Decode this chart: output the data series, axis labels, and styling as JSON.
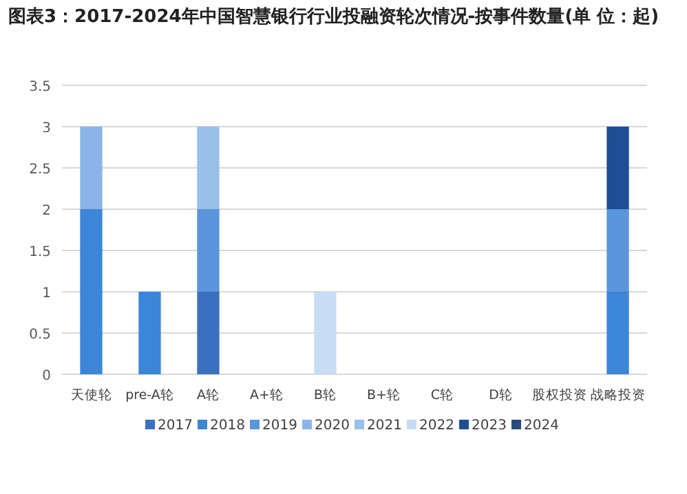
{
  "chart_data": {
    "type": "bar",
    "stacked": true,
    "title": "图表3：2017-2024年中国智慧银行行业投融资轮次情况-按事件数量(单 位：起)",
    "categories": [
      "天使轮",
      "pre-A轮",
      "A轮",
      "A+轮",
      "B轮",
      "B+轮",
      "C轮",
      "D轮",
      "股权投资",
      "战略投资"
    ],
    "series": [
      {
        "name": "2017",
        "color": "#3a70c0",
        "values": [
          0,
          0,
          1,
          0,
          0,
          0,
          0,
          0,
          0,
          0
        ]
      },
      {
        "name": "2018",
        "color": "#3d85d8",
        "values": [
          2,
          1,
          0,
          0,
          0,
          0,
          0,
          0,
          0,
          1
        ]
      },
      {
        "name": "2019",
        "color": "#5b95dc",
        "values": [
          0,
          0,
          1,
          0,
          0,
          0,
          0,
          0,
          0,
          1
        ]
      },
      {
        "name": "2020",
        "color": "#8cb4e8",
        "values": [
          1,
          0,
          0,
          0,
          0,
          0,
          0,
          0,
          0,
          0
        ]
      },
      {
        "name": "2021",
        "color": "#99bfea",
        "values": [
          0,
          0,
          1,
          0,
          0,
          0,
          0,
          0,
          0,
          0
        ]
      },
      {
        "name": "2022",
        "color": "#c8dcf3",
        "values": [
          0,
          0,
          0,
          0,
          1,
          0,
          0,
          0,
          0,
          0
        ]
      },
      {
        "name": "2023",
        "color": "#1f4e96",
        "values": [
          0,
          0,
          0,
          0,
          0,
          0,
          0,
          0,
          0,
          1
        ]
      },
      {
        "name": "2024",
        "color": "#2a4a80",
        "values": [
          0,
          0,
          0,
          0,
          0,
          0,
          0,
          0,
          0,
          0
        ]
      }
    ],
    "ylim": [
      0,
      3.5
    ],
    "yticks": [
      0,
      0.5,
      1,
      1.5,
      2,
      2.5,
      3,
      3.5
    ],
    "grid": "y",
    "legend": "bottom"
  }
}
